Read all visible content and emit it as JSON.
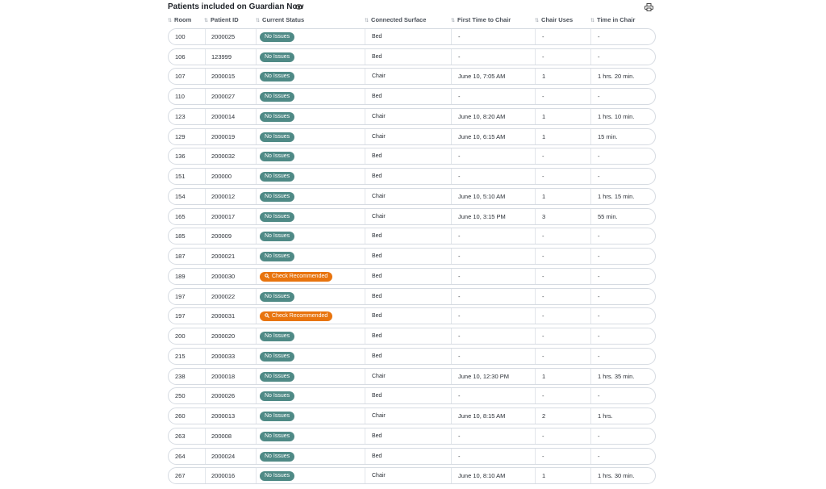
{
  "header": {
    "title": "Patients included on Guardian Now"
  },
  "table": {
    "columns": [
      "Room",
      "Patient ID",
      "Current Status",
      "Connected Surface",
      "First Time to Chair",
      "Chair Uses",
      "Time in Chair"
    ],
    "rows": [
      [
        "100",
        "2000025",
        {
          "text": "No Issues",
          "color": "#4f8a86"
        },
        "Bed",
        "-",
        "-",
        "-"
      ],
      [
        "106",
        "123999",
        {
          "text": "No Issues",
          "color": "#4f8a86"
        },
        "Bed",
        "-",
        "-",
        "-"
      ],
      [
        "107",
        "2000015",
        {
          "text": "No Issues",
          "color": "#4f8a86"
        },
        "Chair",
        "June 10, 7:05 AM",
        "1",
        "1 hrs. 20 min."
      ],
      [
        "110",
        "2000027",
        {
          "text": "No Issues",
          "color": "#4f8a86"
        },
        "Bed",
        "-",
        "-",
        "-"
      ],
      [
        "123",
        "2000014",
        {
          "text": "No Issues",
          "color": "#4f8a86"
        },
        "Chair",
        "June 10, 8:20 AM",
        "1",
        "1 hrs. 10 min."
      ],
      [
        "129",
        "2000019",
        {
          "text": "No Issues",
          "color": "#4f8a86"
        },
        "Chair",
        "June 10, 6:15 AM",
        "1",
        "15 min."
      ],
      [
        "136",
        "2000032",
        {
          "text": "No Issues",
          "color": "#4f8a86"
        },
        "Bed",
        "-",
        "-",
        "-"
      ],
      [
        "151",
        "200000",
        {
          "text": "No Issues",
          "color": "#4f8a86"
        },
        "Bed",
        "-",
        "-",
        "-"
      ],
      [
        "154",
        "2000012",
        {
          "text": "No Issues",
          "color": "#4f8a86"
        },
        "Chair",
        "June 10, 5:10 AM",
        "1",
        "1 hrs. 15 min."
      ],
      [
        "165",
        "2000017",
        {
          "text": "No Issues",
          "color": "#4f8a86"
        },
        "Chair",
        "June 10, 3:15 PM",
        "3",
        "55 min."
      ],
      [
        "185",
        "200009",
        {
          "text": "No Issues",
          "color": "#4f8a86"
        },
        "Bed",
        "-",
        "-",
        "-"
      ],
      [
        "187",
        "2000021",
        {
          "text": "No Issues",
          "color": "#4f8a86"
        },
        "Bed",
        "-",
        "-",
        "-"
      ],
      [
        "189",
        "2000030",
        {
          "text": "Check Recommended",
          "color": "#e8740e",
          "icon": true
        },
        "Bed",
        "-",
        "-",
        "-"
      ],
      [
        "197",
        "2000022",
        {
          "text": "No Issues",
          "color": "#4f8a86"
        },
        "Bed",
        "-",
        "-",
        "-"
      ],
      [
        "197",
        "2000031",
        {
          "text": "Check Recommended",
          "color": "#e8740e",
          "icon": true
        },
        "Bed",
        "-",
        "-",
        "-"
      ],
      [
        "200",
        "2000020",
        {
          "text": "No Issues",
          "color": "#4f8a86"
        },
        "Bed",
        "-",
        "-",
        "-"
      ],
      [
        "215",
        "2000033",
        {
          "text": "No Issues",
          "color": "#4f8a86"
        },
        "Bed",
        "-",
        "-",
        "-"
      ],
      [
        "238",
        "2000018",
        {
          "text": "No Issues",
          "color": "#4f8a86"
        },
        "Chair",
        "June 10, 12:30 PM",
        "1",
        "1 hrs. 35 min."
      ],
      [
        "250",
        "2000026",
        {
          "text": "No Issues",
          "color": "#4f8a86"
        },
        "Bed",
        "-",
        "-",
        "-"
      ],
      [
        "260",
        "2000013",
        {
          "text": "No Issues",
          "color": "#4f8a86"
        },
        "Chair",
        "June 10, 8:15 AM",
        "2",
        "1 hrs."
      ],
      [
        "263",
        "200008",
        {
          "text": "No Issues",
          "color": "#4f8a86"
        },
        "Bed",
        "-",
        "-",
        "-"
      ],
      [
        "264",
        "2000024",
        {
          "text": "No Issues",
          "color": "#4f8a86"
        },
        "Bed",
        "-",
        "-",
        "-"
      ],
      [
        "267",
        "2000016",
        {
          "text": "No Issues",
          "color": "#4f8a86"
        },
        "Chair",
        "June 10, 8:10 AM",
        "1",
        "1 hrs. 30 min."
      ]
    ]
  }
}
